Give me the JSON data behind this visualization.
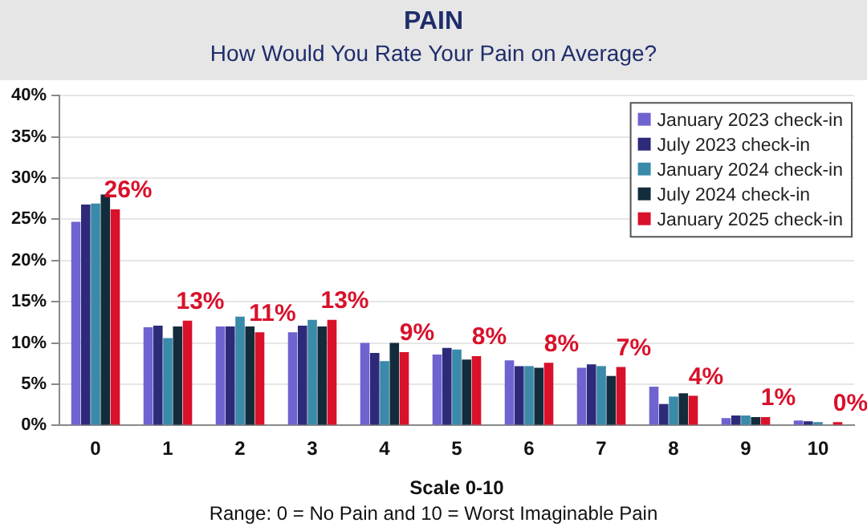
{
  "chart_data": {
    "type": "bar",
    "title": "PAIN",
    "subtitle": "How Would You Rate Your Pain on Average?",
    "xlabel": "Scale 0-10",
    "annotations": [
      "Range: 0 = No Pain and 10 = Worst Imaginable Pain"
    ],
    "categories": [
      "0",
      "1",
      "2",
      "3",
      "4",
      "5",
      "6",
      "7",
      "8",
      "9",
      "10"
    ],
    "series": [
      {
        "name": "January 2023 check-in",
        "color": "#6f63d0",
        "values": [
          24.7,
          11.9,
          12.0,
          11.3,
          10.0,
          8.6,
          7.9,
          7.0,
          4.7,
          0.9,
          0.6
        ]
      },
      {
        "name": "July 2023 check-in",
        "color": "#2e2a7a",
        "values": [
          26.8,
          12.1,
          12.0,
          12.1,
          8.8,
          9.4,
          7.2,
          7.4,
          2.6,
          1.2,
          0.5
        ]
      },
      {
        "name": "January 2024 check-in",
        "color": "#3a8aaa",
        "values": [
          26.9,
          10.6,
          13.2,
          12.8,
          7.8,
          9.2,
          7.2,
          7.2,
          3.5,
          1.2,
          0.4
        ]
      },
      {
        "name": "July 2024 check-in",
        "color": "#132c3c",
        "values": [
          28.0,
          12.0,
          12.0,
          12.0,
          10.0,
          8.0,
          7.0,
          6.0,
          3.9,
          1.0,
          0
        ]
      },
      {
        "name": "January 2025 check-in",
        "color": "#d9112b",
        "values": [
          26.2,
          12.7,
          11.3,
          12.8,
          8.9,
          8.4,
          7.6,
          7.1,
          3.6,
          1.0,
          0.4
        ],
        "value_labels": [
          "26%",
          "13%",
          "11%",
          "13%",
          "9%",
          "8%",
          "8%",
          "7%",
          "4%",
          "1%",
          "0%"
        ]
      }
    ],
    "ylim": [
      0,
      40
    ],
    "yticks": [
      {
        "value": 0,
        "label": "0%"
      },
      {
        "value": 5,
        "label": "5%"
      },
      {
        "value": 10,
        "label": "10%"
      },
      {
        "value": 15,
        "label": "15%"
      },
      {
        "value": 20,
        "label": "20%"
      },
      {
        "value": 25,
        "label": "25%"
      },
      {
        "value": 30,
        "label": "30%"
      },
      {
        "value": 35,
        "label": "35%"
      },
      {
        "value": 40,
        "label": "40%"
      }
    ],
    "grid": "y",
    "legend": "top right"
  }
}
